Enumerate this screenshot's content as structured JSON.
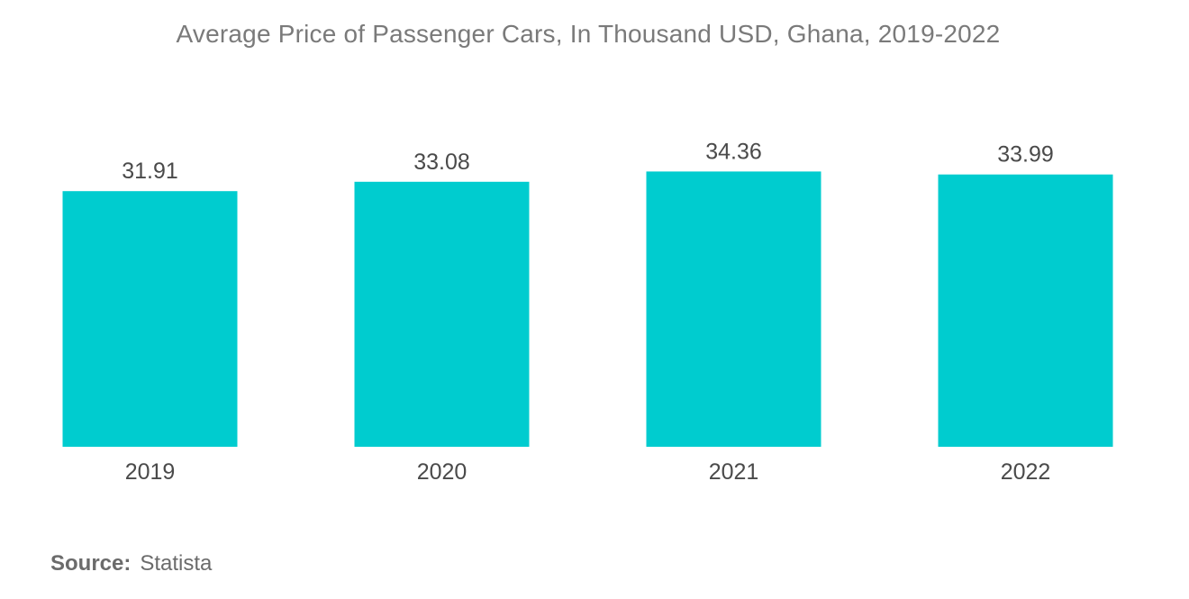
{
  "chart_data": {
    "type": "bar",
    "title": "Average Price of Passenger Cars, In Thousand USD, Ghana, 2019-2022",
    "categories": [
      "2019",
      "2020",
      "2021",
      "2022"
    ],
    "values": [
      31.91,
      33.08,
      34.36,
      33.99
    ],
    "value_labels": [
      "31.91",
      "33.08",
      "34.36",
      "33.99"
    ],
    "xlabel": "",
    "ylabel": "",
    "ylim": [
      0,
      36
    ],
    "grid": false,
    "legend": "none",
    "bar_color": "#00CCCF"
  },
  "source": {
    "label": "Source:",
    "value": "Statista"
  }
}
